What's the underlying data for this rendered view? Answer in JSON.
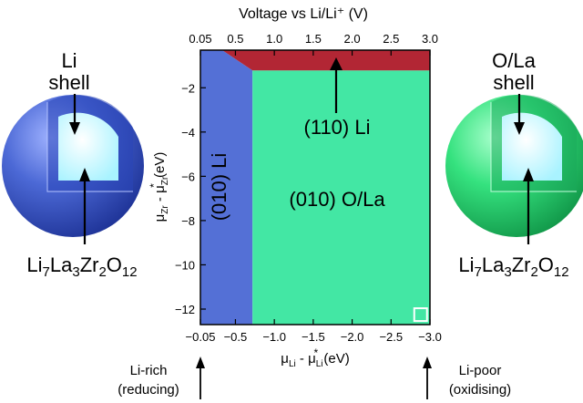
{
  "colors": {
    "li_region": "#5470d6",
    "ola_region": "#43e7a4",
    "li110_region": "#b22634",
    "li_sphere": "#4462d0",
    "ola_sphere": "#31e07d",
    "core": "#c8ffff"
  },
  "chart_data": {
    "type": "heatmap",
    "top_axis": {
      "label": "Voltage vs Li/Li⁺ (V)",
      "ticks": [
        "0.05",
        "0.5",
        "1.0",
        "1.5",
        "2.0",
        "2.5",
        "3.0"
      ],
      "values": [
        0.05,
        0.5,
        1.0,
        1.5,
        2.0,
        2.5,
        3.0
      ]
    },
    "xlim": [
      -0.05,
      -3.0
    ],
    "ylim": [
      -12.7,
      -0.3
    ],
    "xticks": [
      "−0.05",
      "−0.5",
      "−1.0",
      "−1.5",
      "−2.0",
      "−2.5",
      "−3.0"
    ],
    "xtick_values": [
      -0.05,
      -0.5,
      -1.0,
      -1.5,
      -2.0,
      -2.5,
      -3.0
    ],
    "yticks": [
      "−2",
      "−4",
      "−6",
      "−8",
      "−10",
      "−12"
    ],
    "ytick_values": [
      -2,
      -4,
      -6,
      -8,
      -10,
      -12
    ],
    "regions": [
      {
        "label": "(010) Li",
        "color": "#5470d6",
        "polygon": [
          [
            -0.05,
            -0.3
          ],
          [
            -0.33,
            -0.3
          ],
          [
            -0.72,
            -1.22
          ],
          [
            -0.72,
            -12.7
          ],
          [
            -0.05,
            -12.7
          ]
        ]
      },
      {
        "label": "(010) O/La",
        "color": "#43e7a4",
        "polygon": [
          [
            -0.72,
            -1.22
          ],
          [
            -3.0,
            -1.22
          ],
          [
            -3.0,
            -12.7
          ],
          [
            -0.72,
            -12.7
          ]
        ]
      },
      {
        "label": "(110) Li",
        "color": "#b22634",
        "polygon": [
          [
            -0.33,
            -0.3
          ],
          [
            -3.0,
            -0.3
          ],
          [
            -3.0,
            -1.22
          ],
          [
            -0.72,
            -1.22
          ]
        ]
      }
    ],
    "marker": {
      "x": -2.88,
      "y": -12.25,
      "shape": "open-square"
    }
  },
  "labels": {
    "x_axis": {
      "mu": "μ",
      "li": "Li",
      "minus": " - ",
      "star": "*",
      "unit": " (eV)"
    },
    "y_axis": {
      "mu": "μ",
      "zr": "Zr",
      "minus": " - ",
      "star": "*",
      "unit": " (eV)"
    },
    "region_010_li": "(010) Li",
    "region_010_ola": "(010) O/La",
    "region_110_li": "(110) Li",
    "left_shell": [
      "Li",
      "shell"
    ],
    "right_shell": [
      "O/La",
      "shell"
    ],
    "formula": {
      "li": "Li",
      "s7": "7",
      "la": "La",
      "s3": "3",
      "zr": "Zr",
      "s2": "2",
      "o": "O",
      "s12": "12"
    },
    "li_rich": [
      "Li-rich",
      "(reducing)"
    ],
    "li_poor": [
      "Li-poor",
      "(oxidising)"
    ]
  }
}
